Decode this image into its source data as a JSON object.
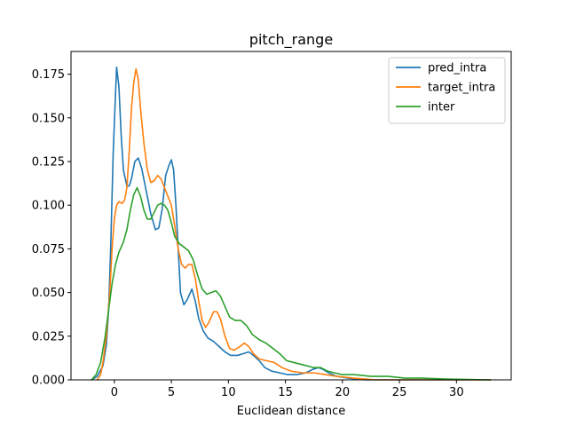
{
  "chart_data": {
    "type": "line",
    "title": "pitch_range",
    "xlabel": "Euclidean distance",
    "ylabel": "",
    "xlim": [
      -3.8,
      34.8
    ],
    "ylim": [
      0,
      0.188
    ],
    "xticks": [
      0,
      5,
      10,
      15,
      20,
      25,
      30
    ],
    "yticks": [
      0.0,
      0.025,
      0.05,
      0.075,
      0.1,
      0.125,
      0.15,
      0.175
    ],
    "ytick_labels": [
      "0.000",
      "0.025",
      "0.050",
      "0.075",
      "0.100",
      "0.125",
      "0.150",
      "0.175"
    ],
    "grid": false,
    "legend_position": "top-right",
    "colors": {
      "pred_intra": "#1f77b4",
      "target_intra": "#ff7f0e",
      "inter": "#2ca02c"
    },
    "series": [
      {
        "name": "pred_intra",
        "color": "#1f77b4",
        "points": [
          [
            -2,
            0
          ],
          [
            -1.5,
            0.002
          ],
          [
            -1,
            0.008
          ],
          [
            -0.7,
            0.02
          ],
          [
            -0.5,
            0.04
          ],
          [
            -0.3,
            0.08
          ],
          [
            -0.1,
            0.13
          ],
          [
            0.1,
            0.163
          ],
          [
            0.2,
            0.179
          ],
          [
            0.4,
            0.168
          ],
          [
            0.6,
            0.14
          ],
          [
            0.8,
            0.12
          ],
          [
            1.1,
            0.111
          ],
          [
            1.3,
            0.111
          ],
          [
            1.5,
            0.115
          ],
          [
            1.8,
            0.125
          ],
          [
            2.1,
            0.127
          ],
          [
            2.4,
            0.121
          ],
          [
            2.8,
            0.108
          ],
          [
            3.2,
            0.095
          ],
          [
            3.6,
            0.086
          ],
          [
            3.9,
            0.087
          ],
          [
            4.2,
            0.098
          ],
          [
            4.5,
            0.117
          ],
          [
            4.8,
            0.123
          ],
          [
            5.0,
            0.126
          ],
          [
            5.2,
            0.12
          ],
          [
            5.4,
            0.1
          ],
          [
            5.6,
            0.075
          ],
          [
            5.8,
            0.05
          ],
          [
            6.1,
            0.043
          ],
          [
            6.4,
            0.046
          ],
          [
            6.8,
            0.052
          ],
          [
            7.1,
            0.045
          ],
          [
            7.4,
            0.035
          ],
          [
            7.8,
            0.028
          ],
          [
            8.2,
            0.024
          ],
          [
            8.7,
            0.022
          ],
          [
            9.2,
            0.019
          ],
          [
            9.7,
            0.016
          ],
          [
            10.2,
            0.014
          ],
          [
            10.8,
            0.014
          ],
          [
            11.3,
            0.015
          ],
          [
            11.8,
            0.016
          ],
          [
            12.2,
            0.014
          ],
          [
            12.7,
            0.011
          ],
          [
            13.2,
            0.007
          ],
          [
            13.8,
            0.005
          ],
          [
            14.5,
            0.004
          ],
          [
            15.2,
            0.003
          ],
          [
            16,
            0.003
          ],
          [
            16.8,
            0.004
          ],
          [
            17.4,
            0.006
          ],
          [
            17.9,
            0.007
          ],
          [
            18.3,
            0.006
          ],
          [
            18.8,
            0.004
          ],
          [
            19.5,
            0.002
          ],
          [
            20.5,
            0.001
          ],
          [
            22,
            0
          ],
          [
            24,
            0
          ],
          [
            27,
            0
          ],
          [
            30,
            0
          ],
          [
            33,
            0
          ]
        ]
      },
      {
        "name": "target_intra",
        "color": "#ff7f0e",
        "points": [
          [
            -1.5,
            0
          ],
          [
            -1.2,
            0.003
          ],
          [
            -1,
            0.01
          ],
          [
            -0.7,
            0.025
          ],
          [
            -0.4,
            0.05
          ],
          [
            -0.2,
            0.075
          ],
          [
            0,
            0.092
          ],
          [
            0.2,
            0.1
          ],
          [
            0.4,
            0.102
          ],
          [
            0.7,
            0.101
          ],
          [
            0.9,
            0.103
          ],
          [
            1.1,
            0.11
          ],
          [
            1.3,
            0.13
          ],
          [
            1.5,
            0.155
          ],
          [
            1.7,
            0.17
          ],
          [
            1.9,
            0.178
          ],
          [
            2.1,
            0.172
          ],
          [
            2.3,
            0.155
          ],
          [
            2.6,
            0.135
          ],
          [
            2.9,
            0.12
          ],
          [
            3.2,
            0.113
          ],
          [
            3.5,
            0.114
          ],
          [
            3.8,
            0.117
          ],
          [
            4.1,
            0.115
          ],
          [
            4.4,
            0.11
          ],
          [
            4.7,
            0.105
          ],
          [
            5.0,
            0.1
          ],
          [
            5.3,
            0.088
          ],
          [
            5.6,
            0.075
          ],
          [
            5.9,
            0.066
          ],
          [
            6.2,
            0.064
          ],
          [
            6.5,
            0.066
          ],
          [
            6.8,
            0.066
          ],
          [
            7.1,
            0.058
          ],
          [
            7.4,
            0.045
          ],
          [
            7.7,
            0.034
          ],
          [
            8.0,
            0.03
          ],
          [
            8.3,
            0.033
          ],
          [
            8.7,
            0.039
          ],
          [
            9.0,
            0.039
          ],
          [
            9.3,
            0.035
          ],
          [
            9.7,
            0.025
          ],
          [
            10.1,
            0.018
          ],
          [
            10.5,
            0.017
          ],
          [
            11,
            0.019
          ],
          [
            11.4,
            0.021
          ],
          [
            11.8,
            0.019
          ],
          [
            12.2,
            0.015
          ],
          [
            12.7,
            0.012
          ],
          [
            13.3,
            0.011
          ],
          [
            14,
            0.01
          ],
          [
            14.7,
            0.007
          ],
          [
            15.5,
            0.005
          ],
          [
            16.5,
            0.004
          ],
          [
            17.5,
            0.004
          ],
          [
            18.5,
            0.003
          ],
          [
            19.5,
            0.002
          ],
          [
            21,
            0.001
          ],
          [
            23,
            0
          ],
          [
            26,
            0
          ],
          [
            30,
            0
          ],
          [
            33,
            0
          ]
        ]
      },
      {
        "name": "inter",
        "color": "#2ca02c",
        "points": [
          [
            -2,
            0
          ],
          [
            -1.6,
            0.003
          ],
          [
            -1.2,
            0.01
          ],
          [
            -0.8,
            0.025
          ],
          [
            -0.5,
            0.04
          ],
          [
            -0.2,
            0.055
          ],
          [
            0.1,
            0.066
          ],
          [
            0.4,
            0.073
          ],
          [
            0.8,
            0.079
          ],
          [
            1.1,
            0.086
          ],
          [
            1.4,
            0.097
          ],
          [
            1.7,
            0.106
          ],
          [
            2.0,
            0.11
          ],
          [
            2.3,
            0.105
          ],
          [
            2.6,
            0.097
          ],
          [
            2.9,
            0.092
          ],
          [
            3.2,
            0.092
          ],
          [
            3.5,
            0.096
          ],
          [
            3.8,
            0.1
          ],
          [
            4.1,
            0.101
          ],
          [
            4.4,
            0.1
          ],
          [
            4.7,
            0.097
          ],
          [
            5.0,
            0.09
          ],
          [
            5.3,
            0.082
          ],
          [
            5.7,
            0.078
          ],
          [
            6.1,
            0.076
          ],
          [
            6.5,
            0.074
          ],
          [
            6.9,
            0.069
          ],
          [
            7.3,
            0.06
          ],
          [
            7.7,
            0.052
          ],
          [
            8.1,
            0.049
          ],
          [
            8.5,
            0.05
          ],
          [
            8.9,
            0.051
          ],
          [
            9.3,
            0.048
          ],
          [
            9.7,
            0.042
          ],
          [
            10.1,
            0.036
          ],
          [
            10.6,
            0.034
          ],
          [
            11.1,
            0.034
          ],
          [
            11.6,
            0.031
          ],
          [
            12.1,
            0.026
          ],
          [
            12.7,
            0.023
          ],
          [
            13.3,
            0.021
          ],
          [
            13.9,
            0.018
          ],
          [
            14.5,
            0.015
          ],
          [
            15.1,
            0.011
          ],
          [
            15.7,
            0.01
          ],
          [
            16.3,
            0.009
          ],
          [
            16.9,
            0.008
          ],
          [
            17.5,
            0.007
          ],
          [
            18.1,
            0.007
          ],
          [
            18.7,
            0.005
          ],
          [
            19.3,
            0.004
          ],
          [
            20,
            0.003
          ],
          [
            21,
            0.003
          ],
          [
            22.5,
            0.002
          ],
          [
            24,
            0.002
          ],
          [
            25.5,
            0.001
          ],
          [
            27,
            0.001
          ],
          [
            29,
            0.0005
          ],
          [
            31,
            0.0002
          ],
          [
            33,
            0
          ]
        ]
      }
    ]
  }
}
